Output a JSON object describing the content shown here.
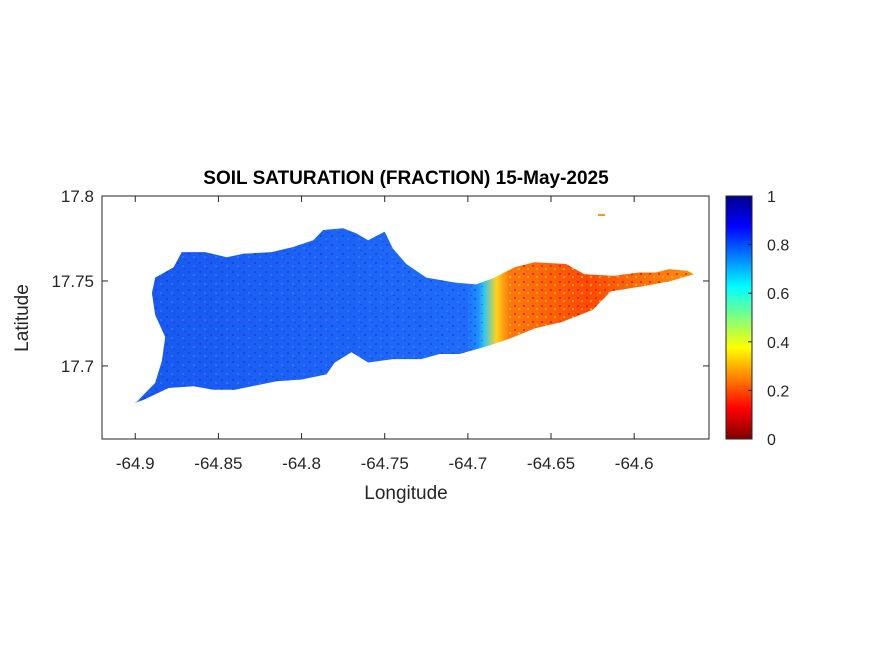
{
  "chart_data": {
    "type": "heatmap",
    "title": "SOIL SATURATION (FRACTION) 15-May-2025",
    "xlabel": "Longitude",
    "ylabel": "Latitude",
    "xlim": [
      -64.92,
      -64.555
    ],
    "ylim": [
      17.657,
      17.8
    ],
    "x_ticks": [
      -64.9,
      -64.85,
      -64.8,
      -64.75,
      -64.7,
      -64.65,
      -64.6
    ],
    "x_tick_labels": [
      "-64.9",
      "-64.85",
      "-64.8",
      "-64.75",
      "-64.7",
      "-64.65",
      "-64.6"
    ],
    "y_ticks": [
      17.7,
      17.75,
      17.8
    ],
    "y_tick_labels": [
      "17.7",
      "17.75",
      "17.8"
    ],
    "colorbar": {
      "colormap": "jet",
      "range": [
        0,
        1
      ],
      "ticks": [
        0,
        0.2,
        0.4,
        0.6,
        0.8,
        1
      ],
      "tick_labels": [
        "0",
        "0.2",
        "0.4",
        "0.6",
        "0.8",
        "1"
      ]
    },
    "regions": [
      {
        "description": "western and central island",
        "lon_range": [
          -64.9,
          -64.69
        ],
        "value": 0.85
      },
      {
        "description": "transition zone",
        "lon_range": [
          -64.69,
          -64.675
        ],
        "value": 0.6
      },
      {
        "description": "eastern end",
        "lon_range": [
          -64.675,
          -64.56
        ],
        "value": 0.25
      }
    ],
    "island_outline": [
      [
        -64.899,
        17.679
      ],
      [
        -64.888,
        17.69
      ],
      [
        -64.884,
        17.703
      ],
      [
        -64.882,
        17.717
      ],
      [
        -64.888,
        17.73
      ],
      [
        -64.89,
        17.743
      ],
      [
        -64.888,
        17.752
      ],
      [
        -64.877,
        17.758
      ],
      [
        -64.872,
        17.767
      ],
      [
        -64.858,
        17.767
      ],
      [
        -64.845,
        17.764
      ],
      [
        -64.835,
        17.766
      ],
      [
        -64.818,
        17.767
      ],
      [
        -64.805,
        17.77
      ],
      [
        -64.793,
        17.774
      ],
      [
        -64.787,
        17.78
      ],
      [
        -64.775,
        17.781
      ],
      [
        -64.767,
        17.778
      ],
      [
        -64.76,
        17.774
      ],
      [
        -64.75,
        17.779
      ],
      [
        -64.745,
        17.769
      ],
      [
        -64.737,
        17.76
      ],
      [
        -64.725,
        17.752
      ],
      [
        -64.707,
        17.749
      ],
      [
        -64.695,
        17.748
      ],
      [
        -64.684,
        17.752
      ],
      [
        -64.672,
        17.758
      ],
      [
        -64.66,
        17.761
      ],
      [
        -64.641,
        17.76
      ],
      [
        -64.63,
        17.754
      ],
      [
        -64.612,
        17.753
      ],
      [
        -64.597,
        17.755
      ],
      [
        -64.587,
        17.755
      ],
      [
        -64.579,
        17.757
      ],
      [
        -64.568,
        17.756
      ],
      [
        -64.564,
        17.754
      ],
      [
        -64.578,
        17.75
      ],
      [
        -64.594,
        17.747
      ],
      [
        -64.614,
        17.744
      ],
      [
        -64.625,
        17.733
      ],
      [
        -64.643,
        17.726
      ],
      [
        -64.66,
        17.722
      ],
      [
        -64.675,
        17.716
      ],
      [
        -64.687,
        17.712
      ],
      [
        -64.705,
        17.707
      ],
      [
        -64.717,
        17.707
      ],
      [
        -64.728,
        17.704
      ],
      [
        -64.745,
        17.704
      ],
      [
        -64.76,
        17.702
      ],
      [
        -64.77,
        17.708
      ],
      [
        -64.78,
        17.702
      ],
      [
        -64.785,
        17.695
      ],
      [
        -64.8,
        17.692
      ],
      [
        -64.815,
        17.691
      ],
      [
        -64.84,
        17.686
      ],
      [
        -64.853,
        17.686
      ],
      [
        -64.865,
        17.688
      ],
      [
        -64.88,
        17.687
      ],
      [
        -64.895,
        17.68
      ],
      [
        -64.901,
        17.678
      ]
    ]
  }
}
